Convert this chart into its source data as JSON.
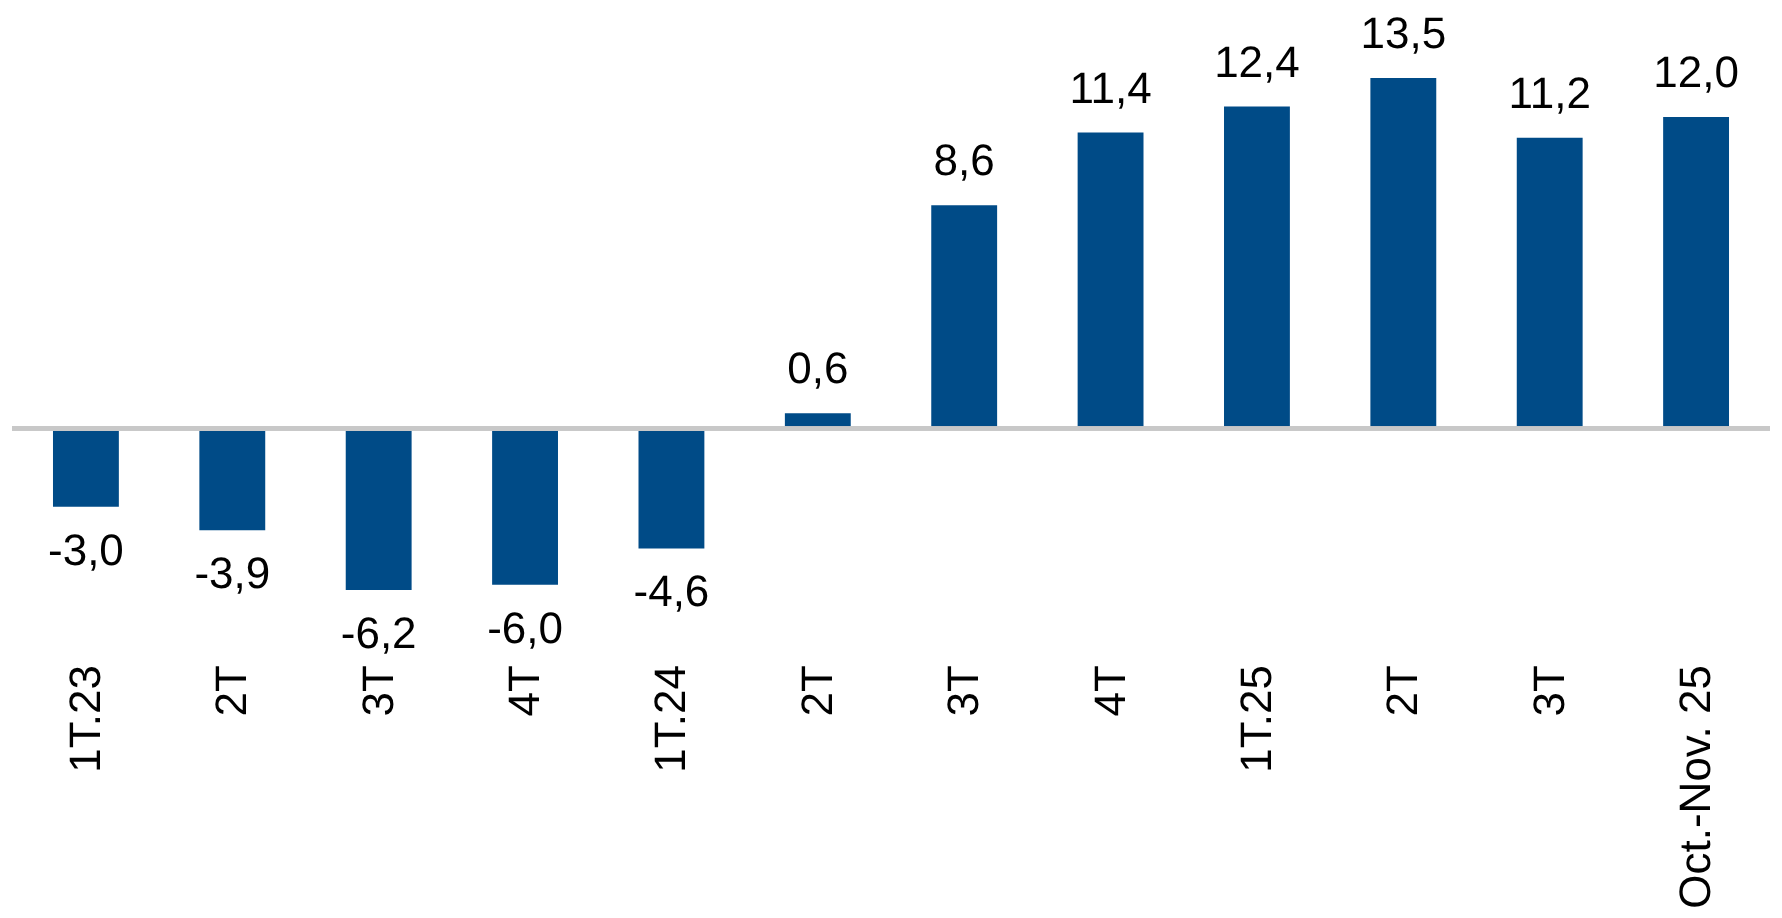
{
  "chart_data": {
    "type": "bar",
    "categories": [
      "1T.23",
      "2T",
      "3T",
      "4T",
      "1T.24",
      "2T",
      "3T",
      "4T",
      "1T.25",
      "2T",
      "3T",
      "Oct.-Nov. 25"
    ],
    "values": [
      -3.0,
      -3.9,
      -6.2,
      -6.0,
      -4.6,
      0.6,
      8.6,
      11.4,
      12.4,
      13.5,
      11.2,
      12.0
    ],
    "value_labels": [
      "-3,0",
      "-3,9",
      "-6,2",
      "-6,0",
      "-4,6",
      "0,6",
      "8,6",
      "11,4",
      "12,4",
      "13,5",
      "11,2",
      "12,0"
    ],
    "color": "#004b87",
    "grid": false
  }
}
